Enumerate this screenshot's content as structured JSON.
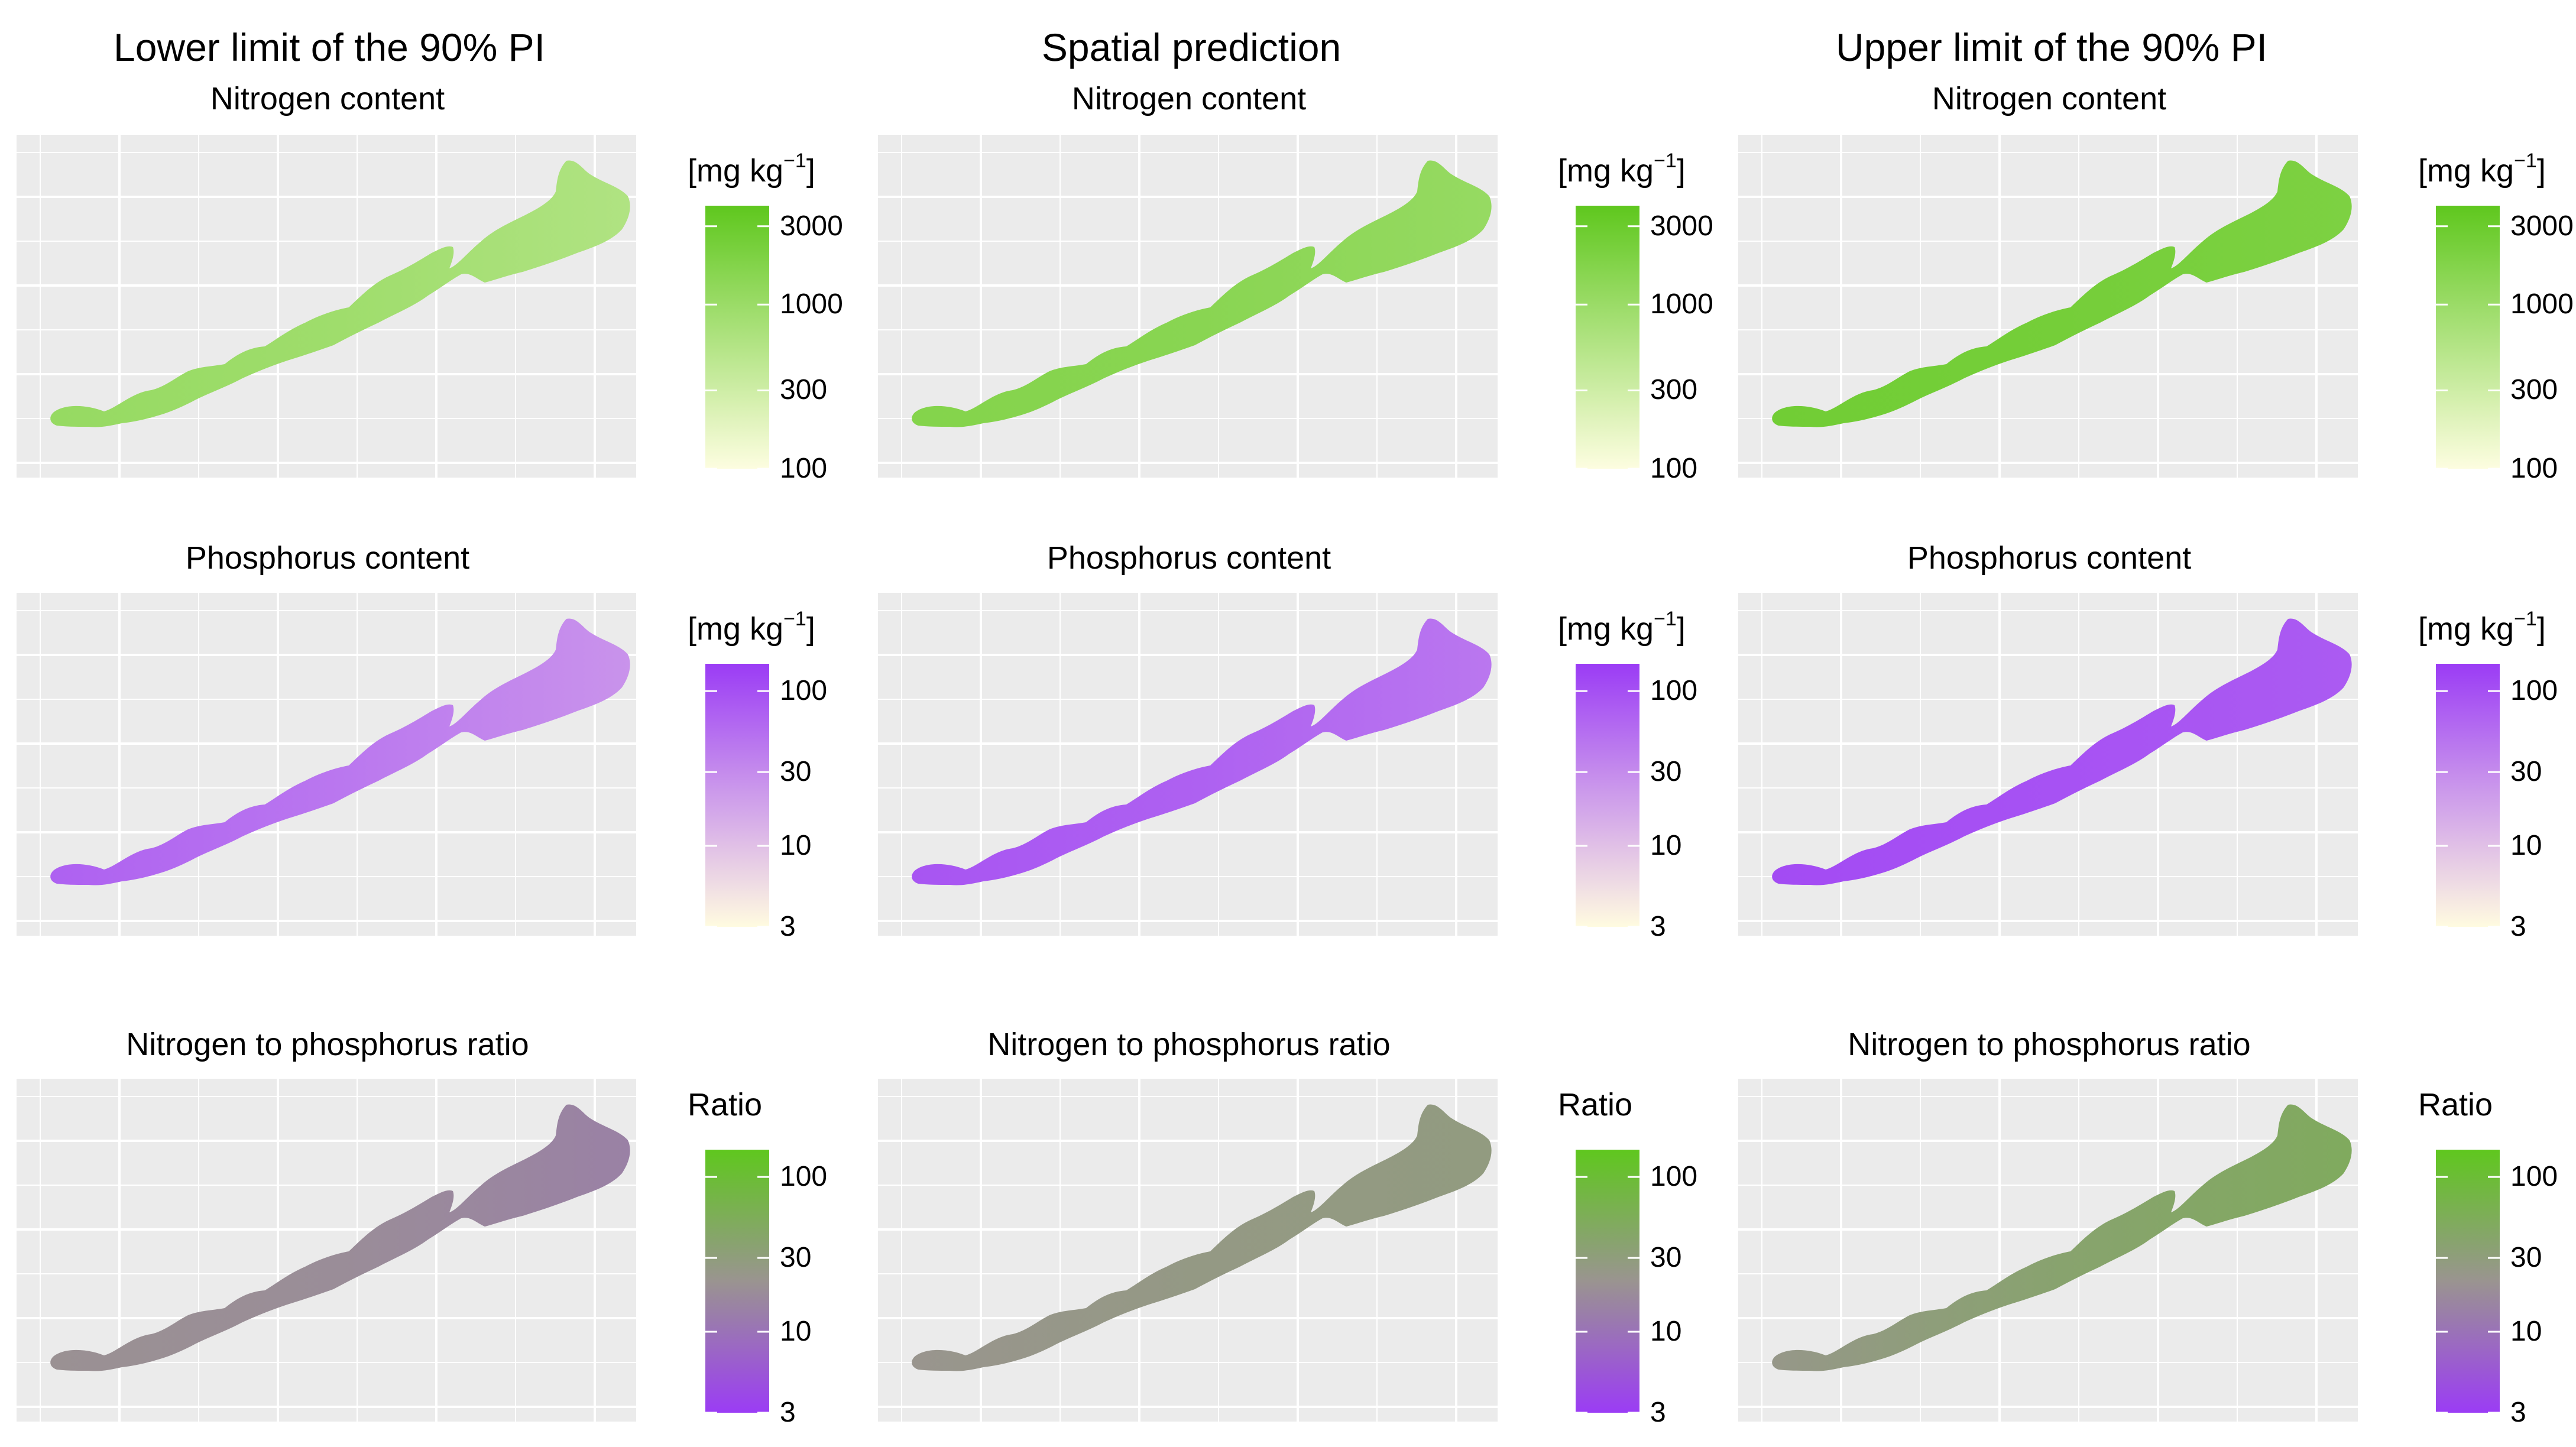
{
  "column_titles": [
    "Lower limit of the 90% PI",
    "Spatial prediction",
    "Upper limit of the 90% PI"
  ],
  "colors": {
    "nitrogen_high": "#5fc71e",
    "nitrogen_low": "#fdfde0",
    "phosphorus_high": "#9b3cf5",
    "phosphorus_low": "#fffbe0",
    "ratio_high": "#5fc71e",
    "ratio_mid": "#9a9490",
    "ratio_low": "#9b3cf5",
    "panel_background": "#ebebeb",
    "grid": "#ffffff"
  },
  "chart_data": [
    {
      "type": "heatmap",
      "row": 0,
      "col": 0,
      "title": "Nitrogen content",
      "legend_title": "[mg kg",
      "legend_unit_exp": "−1",
      "legend_close": "]",
      "scale": "log",
      "ticks": [
        "3000",
        "1000",
        "300",
        "100"
      ],
      "tick_values": [
        3000,
        1000,
        300,
        100
      ],
      "range": [
        100,
        4000
      ],
      "fill_values": [
        1100,
        900,
        600
      ],
      "icon": "lake-map"
    },
    {
      "type": "heatmap",
      "row": 0,
      "col": 1,
      "title": "Nitrogen content",
      "legend_title": "[mg kg",
      "legend_unit_exp": "−1",
      "legend_close": "]",
      "scale": "log",
      "ticks": [
        "3000",
        "1000",
        "300",
        "100"
      ],
      "tick_values": [
        3000,
        1000,
        300,
        100
      ],
      "range": [
        100,
        4000
      ],
      "fill_values": [
        1700,
        1500,
        1100
      ],
      "icon": "lake-map"
    },
    {
      "type": "heatmap",
      "row": 0,
      "col": 2,
      "title": "Nitrogen content",
      "legend_title": "[mg kg",
      "legend_unit_exp": "−1",
      "legend_close": "]",
      "scale": "log",
      "ticks": [
        "3000",
        "1000",
        "300",
        "100"
      ],
      "tick_values": [
        3000,
        1000,
        300,
        100
      ],
      "range": [
        100,
        4000
      ],
      "fill_values": [
        2600,
        2400,
        2000
      ],
      "icon": "lake-map"
    },
    {
      "type": "heatmap",
      "row": 1,
      "col": 0,
      "title": "Phosphorus content",
      "legend_title": "[mg kg",
      "legend_unit_exp": "−1",
      "legend_close": "]",
      "scale": "log",
      "ticks": [
        "100",
        "30",
        "10",
        "3"
      ],
      "tick_values": [
        100,
        30,
        10,
        3
      ],
      "range": [
        3,
        150
      ],
      "fill_values": [
        70,
        45,
        25
      ],
      "icon": "lake-map"
    },
    {
      "type": "heatmap",
      "row": 1,
      "col": 1,
      "title": "Phosphorus content",
      "legend_title": "[mg kg",
      "legend_unit_exp": "−1",
      "legend_close": "]",
      "scale": "log",
      "ticks": [
        "100",
        "30",
        "10",
        "3"
      ],
      "tick_values": [
        100,
        30,
        10,
        3
      ],
      "range": [
        3,
        150
      ],
      "fill_values": [
        90,
        70,
        45
      ],
      "icon": "lake-map"
    },
    {
      "type": "heatmap",
      "row": 1,
      "col": 2,
      "title": "Phosphorus content",
      "legend_title": "[mg kg",
      "legend_unit_exp": "−1",
      "legend_close": "]",
      "scale": "log",
      "ticks": [
        "100",
        "30",
        "10",
        "3"
      ],
      "tick_values": [
        100,
        30,
        10,
        3
      ],
      "range": [
        3,
        150
      ],
      "fill_values": [
        110,
        95,
        80
      ],
      "icon": "lake-map"
    },
    {
      "type": "heatmap",
      "row": 2,
      "col": 0,
      "title": "Nitrogen to phosphorus ratio",
      "legend_title": "Ratio",
      "legend_unit_exp": "",
      "legend_close": "",
      "scale": "log",
      "ticks": [
        "100",
        "30",
        "10",
        "3"
      ],
      "tick_values": [
        100,
        30,
        10,
        3
      ],
      "range": [
        3,
        150
      ],
      "fill_values": [
        20,
        18,
        14
      ],
      "icon": "lake-map"
    },
    {
      "type": "heatmap",
      "row": 2,
      "col": 1,
      "title": "Nitrogen to phosphorus ratio",
      "legend_title": "Ratio",
      "legend_unit_exp": "",
      "legend_close": "",
      "scale": "log",
      "ticks": [
        "100",
        "30",
        "10",
        "3"
      ],
      "tick_values": [
        100,
        30,
        10,
        3
      ],
      "range": [
        3,
        150
      ],
      "fill_values": [
        22,
        26,
        28
      ],
      "icon": "lake-map"
    },
    {
      "type": "heatmap",
      "row": 2,
      "col": 2,
      "title": "Nitrogen to phosphorus ratio",
      "legend_title": "Ratio",
      "legend_unit_exp": "",
      "legend_close": "",
      "scale": "log",
      "ticks": [
        "100",
        "30",
        "10",
        "3"
      ],
      "tick_values": [
        100,
        30,
        10,
        3
      ],
      "range": [
        3,
        150
      ],
      "fill_values": [
        24,
        38,
        50
      ],
      "icon": "lake-map"
    }
  ]
}
